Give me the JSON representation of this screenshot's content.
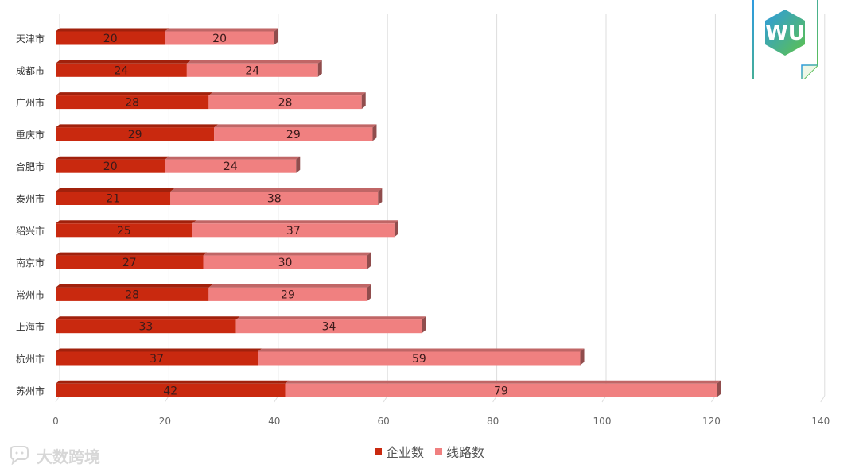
{
  "chart_data": {
    "type": "bar",
    "orientation": "horizontal",
    "stacked": true,
    "categories": [
      "天津市",
      "成都市",
      "广州市",
      "重庆市",
      "合肥市",
      "泰州市",
      "绍兴市",
      "南京市",
      "常州市",
      "上海市",
      "杭州市",
      "苏州市"
    ],
    "series": [
      {
        "name": "企业数",
        "values": [
          20,
          24,
          28,
          29,
          20,
          21,
          25,
          27,
          28,
          33,
          37,
          42
        ],
        "color": "#c9290f"
      },
      {
        "name": "线路数",
        "values": [
          20,
          24,
          28,
          29,
          24,
          38,
          37,
          30,
          29,
          34,
          59,
          79
        ],
        "color": "#f08080"
      }
    ],
    "x_ticks": [
      "0",
      "20",
      "40",
      "60",
      "80",
      "100",
      "120",
      "140"
    ],
    "xlim": [
      0,
      140
    ],
    "grid": true,
    "legend_position": "bottom",
    "data_labels": true
  },
  "logo": {
    "text": "WU",
    "colors": [
      "#2e9be0",
      "#5ec24a"
    ]
  },
  "watermark": {
    "text": "大数跨境",
    "icon": "chat-bubble-icon"
  }
}
